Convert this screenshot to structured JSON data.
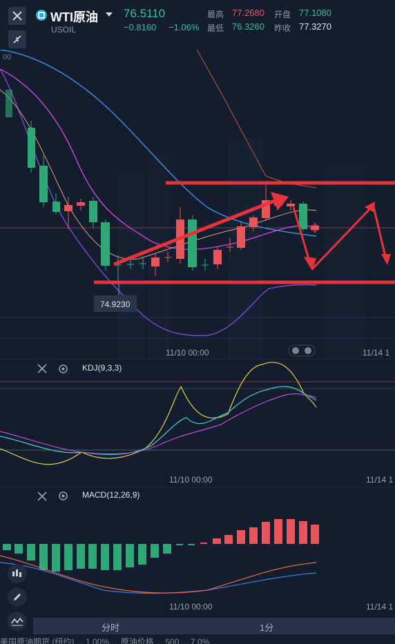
{
  "header": {
    "symbol": "WTI原油",
    "code": "USOIL",
    "price": "76.5110",
    "change": "−0.8160",
    "change_pct": "−1.06%",
    "high_label": "最高",
    "high": "77.2680",
    "open_label": "开盘",
    "open": "77.1080",
    "low_label": "最低",
    "low": "76.3260",
    "prev_label": "昨收",
    "prev": "77.3270"
  },
  "main_chart": {
    "low_marker": "74.9230",
    "time_left": "11/10 00:00",
    "time_right": "11/14 1",
    "partial_axis": "00"
  },
  "kdj": {
    "label": "KDJ(9,3,3)",
    "time_left": "11/10 00:00",
    "time_right": "11/14 1"
  },
  "macd": {
    "label": "MACD(12,26,9)",
    "time_left": "11/10 00:00",
    "time_right": "11/14 1"
  },
  "bottom": {
    "tab1": "分时",
    "tab2": "1分"
  },
  "ticker": "美国原油期货 (纽约) ... 1.00% ... 原油价格 ... 500 ... 7.0%",
  "colors": {
    "up": "#e8565c",
    "down": "#2fc39a",
    "bg": "#141d2e"
  },
  "icons": [
    "close-icon",
    "shrink-icon",
    "settings-icon",
    "candle-icon",
    "pencil-icon",
    "indicator-icon"
  ]
}
